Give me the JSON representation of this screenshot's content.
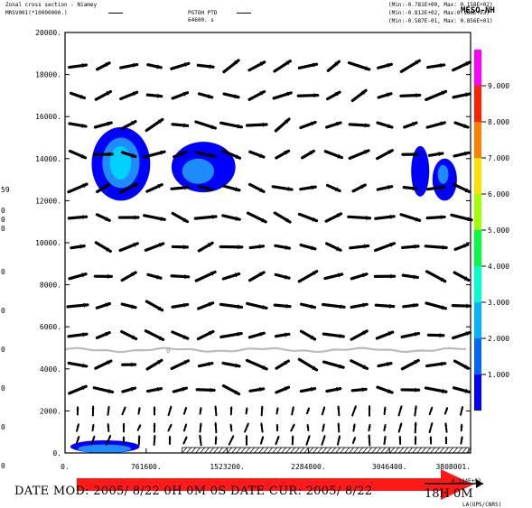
{
  "header": {
    "title": "Zonal cross section - Niamey",
    "field1": "MRSV001(*10000000.)",
    "field2": "PGTOH PTD",
    "field2_sub": "64600.  s",
    "range1": "(Min:-0.781E+00, Max: 0.158E+02)",
    "range2": "(Min:-0.812E+02, Max:0.188E+03)",
    "range3": "(Min:-0.587E-01, Max: 0.856E+01)",
    "overlay": "MESO-NH"
  },
  "footer": {
    "date_text": "DATE MOD: 2005/ 8/22    0H 0M 0S    DATE CUR: 2005/ 8/22",
    "right_text": "18H 0M",
    "lab": "LA(UPS/CNRS)",
    "scale": "0.234E+02"
  },
  "left_cut_labels": [
    "59",
    "0",
    "0",
    "0",
    "0",
    "0",
    "0",
    "0",
    "0",
    "0",
    "0",
    "0"
  ],
  "colors": {
    "contour_dark": "#0000ff",
    "contour_mid": "#1e8cff",
    "contour_light": "#00d0ff",
    "contour_cyan": "#00ffff",
    "isoline": "#bbbbbb",
    "arrow": "#000000",
    "red_arrow": "#ff1a1a"
  },
  "chart_data": {
    "type": "heatmap",
    "title": "Zonal cross section - Niamey",
    "x": {
      "ticks": [
        0,
        761600,
        1523200,
        2284800,
        3046400,
        3808001
      ],
      "tick_labels": [
        "0.",
        "761600.",
        "1523200.",
        "2284800.",
        "3046400.",
        "3808001."
      ],
      "lim": [
        0,
        3808001
      ]
    },
    "y": {
      "ticks": [
        0,
        2000,
        4000,
        6000,
        8000,
        10000,
        12000,
        14000,
        16000,
        18000,
        20000
      ],
      "tick_labels": [
        "0.",
        "2000.",
        "4000.",
        "6000.",
        "8000.",
        "10000.",
        "12000.",
        "14000.",
        "16000.",
        "18000.",
        "20000."
      ],
      "lim": [
        0,
        20000
      ]
    },
    "colorbar": {
      "ticks": [
        1.0,
        2.0,
        3.0,
        4.0,
        5.0,
        6.0,
        7.0,
        8.0,
        9.0
      ],
      "tick_labels": [
        "1.000",
        "2.000",
        "3.000",
        "4.000",
        "5.000",
        "6.000",
        "7.000",
        "8.000",
        "9.000"
      ],
      "colors": [
        "#0000ff",
        "#0064ff",
        "#00b4ff",
        "#00ffd0",
        "#00ff40",
        "#a0ff00",
        "#ffe000",
        "#ff8000",
        "#ff2000",
        "#ff00ff"
      ]
    },
    "isoline": {
      "label": "0",
      "y": 4900
    },
    "cells": [
      {
        "x": [
          250000,
          800000
        ],
        "y": [
          12000,
          15500
        ],
        "level": 1
      },
      {
        "x": [
          350000,
          700000
        ],
        "y": [
          12600,
          15000
        ],
        "level": 2
      },
      {
        "x": [
          420000,
          620000
        ],
        "y": [
          13000,
          14600
        ],
        "level": 3
      },
      {
        "x": [
          1000000,
          1600000
        ],
        "y": [
          12400,
          14800
        ],
        "level": 1
      },
      {
        "x": [
          1100000,
          1400000
        ],
        "y": [
          12800,
          14000
        ],
        "level": 2
      },
      {
        "x": [
          3250000,
          3420000
        ],
        "y": [
          12200,
          14600
        ],
        "level": 1
      },
      {
        "x": [
          3450000,
          3680000
        ],
        "y": [
          12000,
          14000
        ],
        "level": 1
      },
      {
        "x": [
          3500000,
          3600000
        ],
        "y": [
          12800,
          13700
        ],
        "level": 2
      },
      {
        "x": [
          50000,
          700000
        ],
        "y": [
          0,
          600
        ],
        "level": 1
      },
      {
        "x": [
          120000,
          620000
        ],
        "y": [
          0,
          400
        ],
        "level": 2
      }
    ],
    "wind_rows_m": [
      18400,
      17000,
      15600,
      14200,
      12600,
      11200,
      9800,
      8400,
      7000,
      5600,
      4200,
      3000,
      2000,
      1200,
      600
    ]
  }
}
